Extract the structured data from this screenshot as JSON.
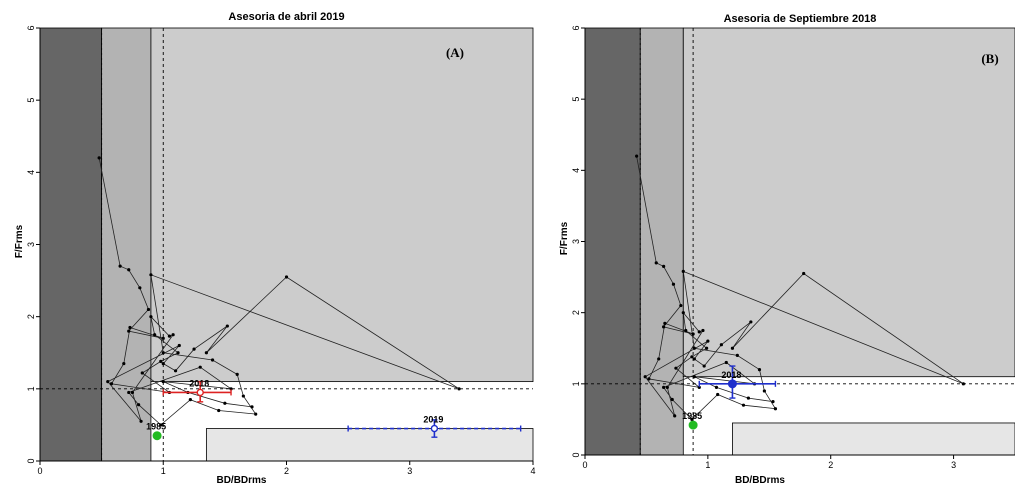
{
  "chart_data": [
    {
      "type": "scatter",
      "title": "Asesoria de abril 2019",
      "panel_label": "(A)",
      "xlabel": "BD/BDrms",
      "ylabel": "F/Frms",
      "xlim": [
        0,
        4
      ],
      "ylim": [
        0,
        6
      ],
      "xticks": [
        "0",
        "1",
        "2",
        "3",
        "4"
      ],
      "yticks": [
        "0",
        "1",
        "2",
        "3",
        "4",
        "5",
        "6"
      ],
      "zones": [
        {
          "x0": 0,
          "x1": 0.5,
          "y0": 0,
          "y1": 6,
          "color": "#666666"
        },
        {
          "x0": 0.5,
          "x1": 0.9,
          "y0": 0,
          "y1": 6,
          "color": "#b3b3b3"
        },
        {
          "x0": 0.9,
          "x1": 4,
          "y0": 1.1,
          "y1": 6,
          "color": "#cccccc"
        },
        {
          "x0": 1.35,
          "x1": 4,
          "y0": 0,
          "y1": 0.45,
          "color": "#e6e6e6"
        }
      ],
      "ref_lines": {
        "x": 1,
        "y": 1,
        "limit_x": 0.5
      },
      "trajectory": {
        "x": [
          0.48,
          0.65,
          0.72,
          0.81,
          0.88,
          0.72,
          1.0,
          0.73,
          0.68,
          0.58,
          1.05,
          0.83,
          0.98,
          1.12,
          0.93,
          0.9,
          1.05,
          1.08,
          0.75,
          0.82,
          0.55,
          1.13,
          1.0,
          1.1,
          1.25,
          1.52,
          1.35,
          2.0,
          3.4,
          0.9,
          1.0,
          1.4,
          1.6,
          1.65,
          1.75,
          1.45,
          1.22,
          0.98,
          0.8,
          0.72,
          1.3,
          1.55,
          1.0,
          1.2,
          1.5,
          1.72
        ],
        "y": [
          4.2,
          2.7,
          2.65,
          2.4,
          2.1,
          1.8,
          1.7,
          1.85,
          1.35,
          1.07,
          0.95,
          1.22,
          1.38,
          1.5,
          1.75,
          2.0,
          1.73,
          1.75,
          0.95,
          0.55,
          1.1,
          1.6,
          1.35,
          1.25,
          1.55,
          1.87,
          1.5,
          2.55,
          1.0,
          2.58,
          1.5,
          1.4,
          1.2,
          0.9,
          0.65,
          0.7,
          0.85,
          0.5,
          0.78,
          0.95,
          1.3,
          1.0,
          1.1,
          0.95,
          0.8,
          0.75
        ]
      },
      "highlights": [
        {
          "label": "1985",
          "x": 0.95,
          "y": 0.35,
          "color": "#22bb22",
          "marker": "filled-circle",
          "xerr": null,
          "yerr": null,
          "dashed": false
        },
        {
          "label": "2018",
          "x": 1.3,
          "y": 0.95,
          "color": "#dd2222",
          "marker": "open-circle",
          "xerr": [
            1.0,
            1.55
          ],
          "yerr": [
            0.82,
            1.1
          ],
          "dashed": false
        },
        {
          "label": "2019",
          "x": 3.2,
          "y": 0.45,
          "color": "#1f2fcc",
          "marker": "open-circle",
          "xerr": [
            2.5,
            3.9
          ],
          "yerr": [
            0.33,
            0.57
          ],
          "dashed": true
        }
      ]
    },
    {
      "type": "scatter",
      "title": "Asesoria de Septiembre 2018",
      "panel_label": "(B)",
      "xlabel": "BD/BDrms",
      "ylabel": "F/Frms",
      "xlim": [
        0,
        3.5
      ],
      "ylim": [
        0,
        6
      ],
      "xticks": [
        "0",
        "1",
        "2",
        "3"
      ],
      "yticks": [
        "0",
        "1",
        "2",
        "3",
        "4",
        "5",
        "6"
      ],
      "zones": [
        {
          "x0": 0,
          "x1": 0.45,
          "y0": 0,
          "y1": 6,
          "color": "#666666"
        },
        {
          "x0": 0.45,
          "x1": 0.8,
          "y0": 0,
          "y1": 6,
          "color": "#b3b3b3"
        },
        {
          "x0": 0.8,
          "x1": 3.5,
          "y0": 1.1,
          "y1": 6,
          "color": "#cccccc"
        },
        {
          "x0": 1.2,
          "x1": 3.5,
          "y0": 0,
          "y1": 0.45,
          "color": "#e6e6e6"
        }
      ],
      "ref_lines": {
        "x": 0.88,
        "y": 1,
        "limit_x": 0.45
      },
      "trajectory": {
        "x": [
          0.42,
          0.58,
          0.64,
          0.72,
          0.78,
          0.64,
          0.88,
          0.65,
          0.6,
          0.52,
          0.93,
          0.74,
          0.87,
          0.99,
          0.82,
          0.8,
          0.93,
          0.96,
          0.67,
          0.73,
          0.49,
          1.0,
          0.89,
          0.97,
          1.11,
          1.35,
          1.2,
          1.78,
          3.08,
          0.8,
          0.89,
          1.24,
          1.42,
          1.46,
          1.55,
          1.29,
          1.08,
          0.87,
          0.71,
          0.64,
          1.15,
          1.38,
          0.89,
          1.07,
          1.33,
          1.53
        ],
        "y": [
          4.2,
          2.7,
          2.65,
          2.4,
          2.1,
          1.8,
          1.7,
          1.85,
          1.35,
          1.07,
          0.95,
          1.22,
          1.38,
          1.5,
          1.75,
          2.0,
          1.73,
          1.75,
          0.95,
          0.55,
          1.1,
          1.6,
          1.35,
          1.25,
          1.55,
          1.87,
          1.5,
          2.55,
          1.0,
          2.58,
          1.5,
          1.4,
          1.2,
          0.9,
          0.65,
          0.7,
          0.85,
          0.5,
          0.78,
          0.95,
          1.3,
          1.0,
          1.1,
          0.95,
          0.8,
          0.75
        ]
      },
      "highlights": [
        {
          "label": "1985",
          "x": 0.88,
          "y": 0.42,
          "color": "#22bb22",
          "marker": "filled-circle",
          "xerr": null,
          "yerr": null,
          "dashed": false
        },
        {
          "label": "2018",
          "x": 1.2,
          "y": 1.0,
          "color": "#1f2fcc",
          "marker": "filled-circle",
          "xerr": [
            0.93,
            1.55
          ],
          "yerr": [
            0.8,
            1.25
          ],
          "dashed": false
        }
      ]
    }
  ]
}
